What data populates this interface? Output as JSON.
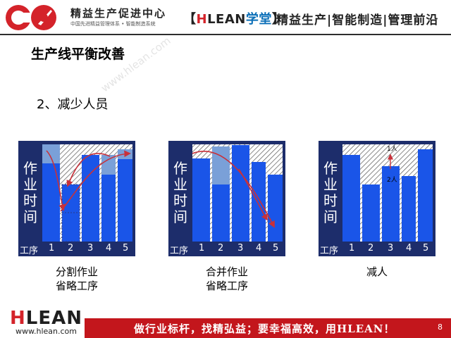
{
  "header": {
    "org_name": "精益生产促进中心",
    "org_subtitle": "中国先进精益管理体系 • 智能制造系统",
    "hlean_tag": {
      "open": "【",
      "h": "H",
      "lean": "LEAN",
      "xt": "学堂",
      "close": "】"
    },
    "slogan": "精益生产|智能制造|管理前沿"
  },
  "slide": {
    "title": "生产线平衡改善",
    "point": "2、减少人员",
    "watermark": "www.hlean.com"
  },
  "diagrams": [
    {
      "ylabel": [
        "作",
        "业",
        "时",
        "间"
      ],
      "axis": {
        "label": "工序",
        "steps": [
          "1",
          "2",
          "3",
          "4",
          "5"
        ]
      },
      "caption": [
        "分割作业",
        "省略工序"
      ]
    },
    {
      "ylabel": [
        "作",
        "业",
        "时",
        "间"
      ],
      "axis": {
        "label": "工序",
        "steps": [
          "1",
          "2",
          "3",
          "4",
          "5"
        ]
      },
      "caption": [
        "合并作业",
        "省略工序"
      ]
    },
    {
      "ylabel": [
        "作",
        "业",
        "时",
        "间"
      ],
      "axis": {
        "label": "工序",
        "steps": [
          "1",
          "2",
          "3",
          "4",
          "5"
        ]
      },
      "caption": [
        "减人"
      ],
      "annotations": [
        "1人",
        "2人"
      ]
    }
  ],
  "footer": {
    "logo_h": "H",
    "logo_rest": "LEAN",
    "url": "www.hlean.com",
    "slogan": "做行业标杆，找精弘益；要幸福高效，用HLEAN！",
    "page": "8"
  },
  "colors": {
    "bar_blue": "#1a55e8",
    "frame_navy": "#1d2d6b",
    "footer_red": "#c3161c",
    "brand_red": "#d4232a",
    "brand_blue": "#0b6fb8"
  }
}
